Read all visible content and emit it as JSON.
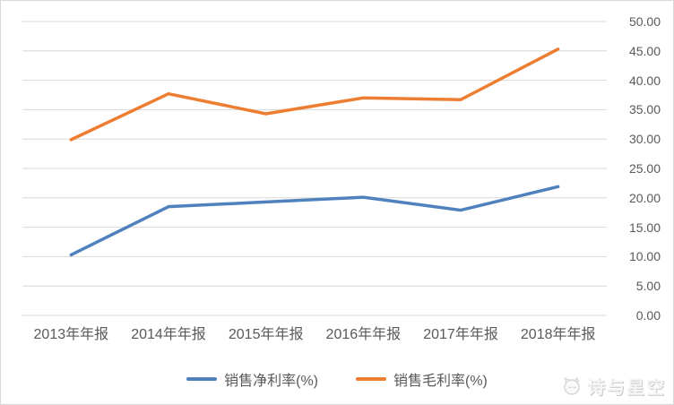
{
  "chart_data": {
    "type": "line",
    "categories": [
      "2013年年报",
      "2014年年报",
      "2015年年报",
      "2016年年报",
      "2017年年报",
      "2018年年报"
    ],
    "series": [
      {
        "name": "销售净利率(%)",
        "color": "#4E81BD",
        "values": [
          10.3,
          18.5,
          19.3,
          20.1,
          17.9,
          21.9
        ]
      },
      {
        "name": "销售毛利率(%)",
        "color": "#ED7D31",
        "values": [
          29.9,
          37.7,
          34.3,
          37.0,
          36.7,
          45.3
        ]
      }
    ],
    "title": "",
    "xlabel": "",
    "ylabel": "",
    "y_axis": {
      "side": "right",
      "min": 0,
      "max": 50,
      "step": 5,
      "tick_labels": [
        "0.00",
        "5.00",
        "10.00",
        "15.00",
        "20.00",
        "25.00",
        "30.00",
        "35.00",
        "40.00",
        "45.00",
        "50.00"
      ]
    },
    "grid": "horizontal",
    "gridline_color": "#D9D9D9",
    "axis_text_color": "#595959",
    "legend_position": "bottom"
  },
  "watermark": {
    "text": "诗与星空",
    "icon": "cat-logo-icon"
  }
}
